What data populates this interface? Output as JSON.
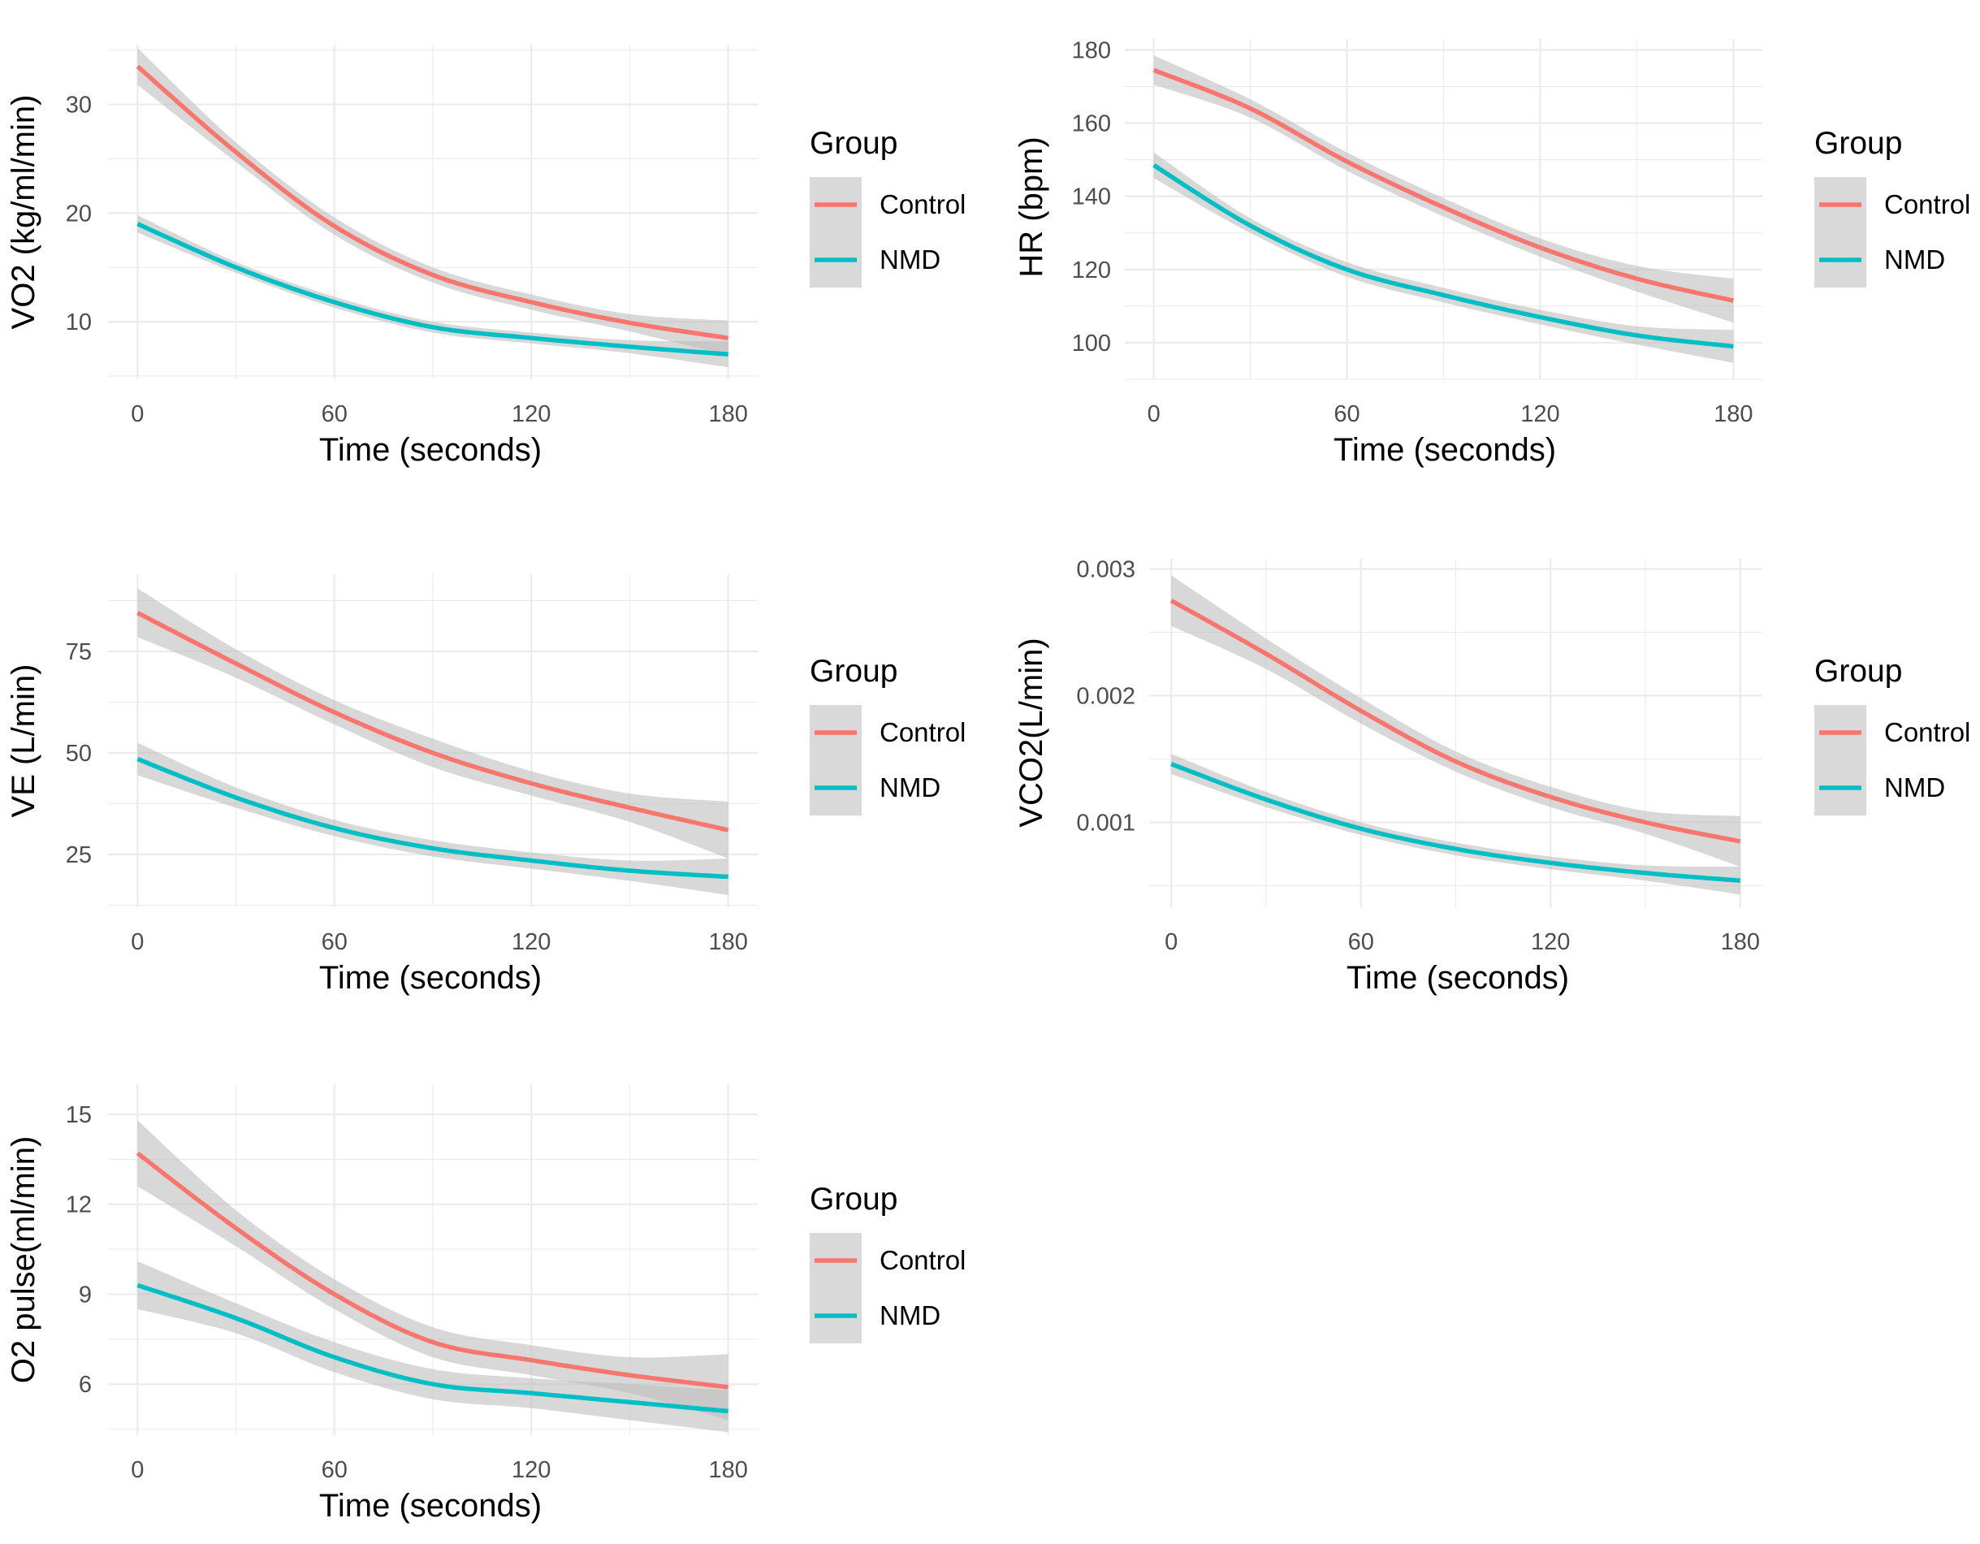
{
  "figure": {
    "description_panels": 5
  },
  "legend": {
    "title": "Group",
    "entries": [
      {
        "name": "Control",
        "color": "#F8766D"
      },
      {
        "name": "NMD",
        "color": "#00BFC4"
      }
    ]
  },
  "colors": {
    "control": "#F8766D",
    "nmd": "#00BFC4",
    "ribbon": "#BEBEBE",
    "grid": "#EBEBEB",
    "legend_key_bg": "#D9D9D9"
  },
  "chart_data": [
    {
      "id": "vo2",
      "type": "line",
      "title": "",
      "xlabel": "Time (seconds)",
      "ylabel": "VO2 (kg/ml/min)",
      "xlim": [
        -9,
        189
      ],
      "ylim": [
        4.7,
        35.5
      ],
      "xticks": [
        0,
        60,
        120,
        180
      ],
      "xtick_labels": [
        "0",
        "60",
        "120",
        "180"
      ],
      "yticks": [
        10,
        20,
        30
      ],
      "ytick_labels": [
        "10",
        "20",
        "30"
      ],
      "legend_position": "right",
      "series": [
        {
          "name": "Control",
          "x": [
            0,
            30,
            60,
            90,
            120,
            150,
            180
          ],
          "y": [
            33.5,
            25.6,
            18.8,
            14.3,
            11.8,
            9.9,
            8.5
          ],
          "lower": [
            31.8,
            24.7,
            18.0,
            13.6,
            11.1,
            9.1,
            6.9
          ],
          "upper": [
            35.2,
            26.5,
            19.6,
            15.0,
            12.5,
            10.7,
            10.1
          ]
        },
        {
          "name": "NMD",
          "x": [
            0,
            30,
            60,
            90,
            120,
            150,
            180
          ],
          "y": [
            19.0,
            15.0,
            11.8,
            9.5,
            8.5,
            7.7,
            7.0
          ],
          "lower": [
            18.2,
            14.5,
            11.3,
            9.0,
            8.0,
            7.1,
            5.8
          ],
          "upper": [
            19.8,
            15.5,
            12.3,
            10.0,
            9.0,
            8.3,
            8.2
          ]
        }
      ]
    },
    {
      "id": "hr",
      "type": "line",
      "title": "",
      "xlabel": "Time (seconds)",
      "ylabel": "HR (bpm)",
      "xlim": [
        -9,
        189
      ],
      "ylim": [
        90,
        183
      ],
      "xticks": [
        0,
        60,
        120,
        180
      ],
      "xtick_labels": [
        "0",
        "60",
        "120",
        "180"
      ],
      "yticks": [
        100,
        120,
        140,
        160,
        180
      ],
      "ytick_labels": [
        "100",
        "120",
        "140",
        "160",
        "180"
      ],
      "legend_position": "right",
      "series": [
        {
          "name": "Control",
          "x": [
            0,
            30,
            60,
            90,
            120,
            150,
            180
          ],
          "y": [
            174.5,
            164.0,
            149.5,
            137.0,
            126.0,
            117.5,
            111.5
          ],
          "lower": [
            170.5,
            161.5,
            147.0,
            134.5,
            123.5,
            114.0,
            105.5
          ],
          "upper": [
            178.5,
            166.5,
            152.0,
            139.5,
            128.5,
            121.0,
            117.5
          ]
        },
        {
          "name": "NMD",
          "x": [
            0,
            30,
            60,
            90,
            120,
            150,
            180
          ],
          "y": [
            148.5,
            132.0,
            120.0,
            113.0,
            107.0,
            102.0,
            99.0
          ],
          "lower": [
            145.0,
            130.0,
            118.0,
            111.0,
            105.0,
            99.5,
            94.5
          ],
          "upper": [
            152.0,
            134.0,
            122.0,
            115.0,
            109.0,
            104.5,
            103.5
          ]
        }
      ]
    },
    {
      "id": "ve",
      "type": "line",
      "title": "",
      "xlabel": "Time (seconds)",
      "ylabel": "VE (L/min)",
      "xlim": [
        -9,
        189
      ],
      "ylim": [
        12,
        94
      ],
      "xticks": [
        0,
        60,
        120,
        180
      ],
      "xtick_labels": [
        "0",
        "60",
        "120",
        "180"
      ],
      "yticks": [
        25,
        50,
        75
      ],
      "ytick_labels": [
        "25",
        "50",
        "75"
      ],
      "legend_position": "right",
      "series": [
        {
          "name": "Control",
          "x": [
            0,
            30,
            60,
            90,
            120,
            150,
            180
          ],
          "y": [
            84.5,
            72.0,
            60.0,
            50.0,
            42.5,
            36.5,
            31.0
          ],
          "lower": [
            78.5,
            68.5,
            57.0,
            46.5,
            39.5,
            33.0,
            24.0
          ],
          "upper": [
            90.5,
            75.5,
            63.0,
            53.5,
            45.5,
            40.0,
            38.0
          ]
        },
        {
          "name": "NMD",
          "x": [
            0,
            30,
            60,
            90,
            120,
            150,
            180
          ],
          "y": [
            48.5,
            39.0,
            31.5,
            26.5,
            23.5,
            21.0,
            19.5
          ],
          "lower": [
            44.5,
            36.5,
            29.5,
            24.5,
            21.5,
            18.5,
            15.0
          ],
          "upper": [
            52.5,
            41.5,
            33.5,
            28.5,
            25.5,
            23.5,
            24.0
          ]
        }
      ]
    },
    {
      "id": "vco2",
      "type": "line",
      "title": "",
      "xlabel": "Time (seconds)",
      "ylabel": "VCO2(L/min)",
      "xlim": [
        -7,
        187
      ],
      "ylim": [
        0.00033,
        0.00308
      ],
      "xticks": [
        0,
        60,
        120,
        180
      ],
      "xtick_labels": [
        "0",
        "60",
        "120",
        "180"
      ],
      "yticks": [
        0.001,
        0.002,
        0.003
      ],
      "ytick_labels": [
        "0.001",
        "0.002",
        "0.003"
      ],
      "legend_position": "right",
      "series": [
        {
          "name": "Control",
          "x": [
            0,
            30,
            60,
            90,
            120,
            150,
            180
          ],
          "y": [
            0.00275,
            0.00233,
            0.00188,
            0.00148,
            0.0012,
            0.001,
            0.00085
          ],
          "lower": [
            0.00255,
            0.00221,
            0.00178,
            0.0014,
            0.00112,
            0.00091,
            0.00065
          ],
          "upper": [
            0.00295,
            0.00245,
            0.00198,
            0.00156,
            0.00128,
            0.00109,
            0.00105
          ]
        },
        {
          "name": "NMD",
          "x": [
            0,
            30,
            60,
            90,
            120,
            150,
            180
          ],
          "y": [
            0.00146,
            0.00118,
            0.00095,
            0.00079,
            0.00068,
            0.0006,
            0.00054
          ],
          "lower": [
            0.00138,
            0.00112,
            0.0009,
            0.00074,
            0.00063,
            0.00054,
            0.00043
          ],
          "upper": [
            0.00154,
            0.00124,
            0.001,
            0.00084,
            0.00073,
            0.00066,
            0.00065
          ]
        }
      ]
    },
    {
      "id": "o2pulse",
      "type": "line",
      "title": "",
      "xlabel": "Time (seconds)",
      "ylabel": "O2 pulse(ml/min)",
      "xlim": [
        -9,
        189
      ],
      "ylim": [
        4.3,
        16.0
      ],
      "xticks": [
        0,
        60,
        120,
        180
      ],
      "xtick_labels": [
        "0",
        "60",
        "120",
        "180"
      ],
      "yticks": [
        6,
        9,
        12,
        15
      ],
      "ytick_labels": [
        "6",
        "9",
        "12",
        "15"
      ],
      "legend_position": "right",
      "series": [
        {
          "name": "Control",
          "x": [
            0,
            30,
            60,
            90,
            120,
            150,
            180
          ],
          "y": [
            13.7,
            11.2,
            9.0,
            7.4,
            6.8,
            6.3,
            5.9
          ],
          "lower": [
            12.6,
            10.6,
            8.5,
            6.9,
            6.3,
            5.7,
            4.8
          ],
          "upper": [
            14.8,
            11.8,
            9.5,
            7.9,
            7.3,
            6.9,
            7.0
          ]
        },
        {
          "name": "NMD",
          "x": [
            0,
            30,
            60,
            90,
            120,
            150,
            180
          ],
          "y": [
            9.3,
            8.2,
            6.9,
            6.0,
            5.7,
            5.4,
            5.1
          ],
          "lower": [
            8.5,
            7.7,
            6.4,
            5.5,
            5.2,
            4.8,
            4.4
          ],
          "upper": [
            10.1,
            8.7,
            7.4,
            6.5,
            6.2,
            6.0,
            5.8
          ]
        }
      ]
    }
  ]
}
